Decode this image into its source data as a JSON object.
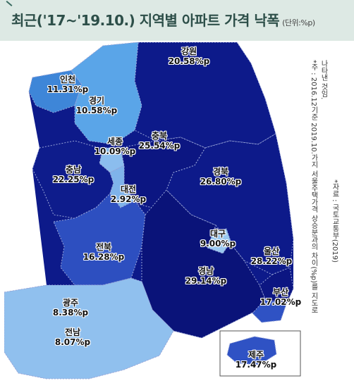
{
  "header": {
    "title": "최근('17~'19.10.) 지역별 아파트 가격 낙폭",
    "unit": "(단위:%p)"
  },
  "regions": [
    {
      "id": "gangwon",
      "name": "강원",
      "value": "20.58%p",
      "color": "#0d1a8a"
    },
    {
      "id": "incheon",
      "name": "인천",
      "value": "11.31%p",
      "color": "#3e86d8"
    },
    {
      "id": "gyeonggi",
      "name": "경기",
      "value": "10.58%p",
      "color": "#5aa5e8"
    },
    {
      "id": "sejong",
      "name": "세종",
      "value": "10.09%p",
      "color": "#8bbdee"
    },
    {
      "id": "chungbuk",
      "name": "충북",
      "value": "25.54%p",
      "color": "#0c1682"
    },
    {
      "id": "chungnam",
      "name": "충남",
      "value": "22.25%p",
      "color": "#0e1c8c"
    },
    {
      "id": "gyeongbuk",
      "name": "경북",
      "value": "26.80%p",
      "color": "#0d1a8a"
    },
    {
      "id": "daejeon",
      "name": "대전",
      "value": "2.92%p",
      "color": "#7fb3ea"
    },
    {
      "id": "daegu",
      "name": "대구",
      "value": "9.00%p",
      "color": "#9ac8f0"
    },
    {
      "id": "jeonbuk",
      "name": "전북",
      "value": "16.28%p",
      "color": "#2d4fc0"
    },
    {
      "id": "ulsan",
      "name": "울산",
      "value": "28.22%p",
      "color": "#0c1682"
    },
    {
      "id": "gwangju",
      "name": "광주",
      "value": "8.38%p",
      "color": "#a9cff2"
    },
    {
      "id": "gyeongnam",
      "name": "경남",
      "value": "29.14%p",
      "color": "#0a1379"
    },
    {
      "id": "busan",
      "name": "부산",
      "value": "17.02%p",
      "color": "#2f52c4"
    },
    {
      "id": "jeonnam",
      "name": "전남",
      "value": "8.07%p",
      "color": "#90c0ee"
    },
    {
      "id": "jeju",
      "name": "제주",
      "value": "17.47%p",
      "color": "#2f52c4"
    }
  ],
  "notes": [
    "*주 : 2016.12기준 2019.10.가지 서울주택가격 상승분과의 차이(%p)를 지도로",
    "나타낸 것임.",
    "*자료 : 국토교통부(2019)"
  ]
}
